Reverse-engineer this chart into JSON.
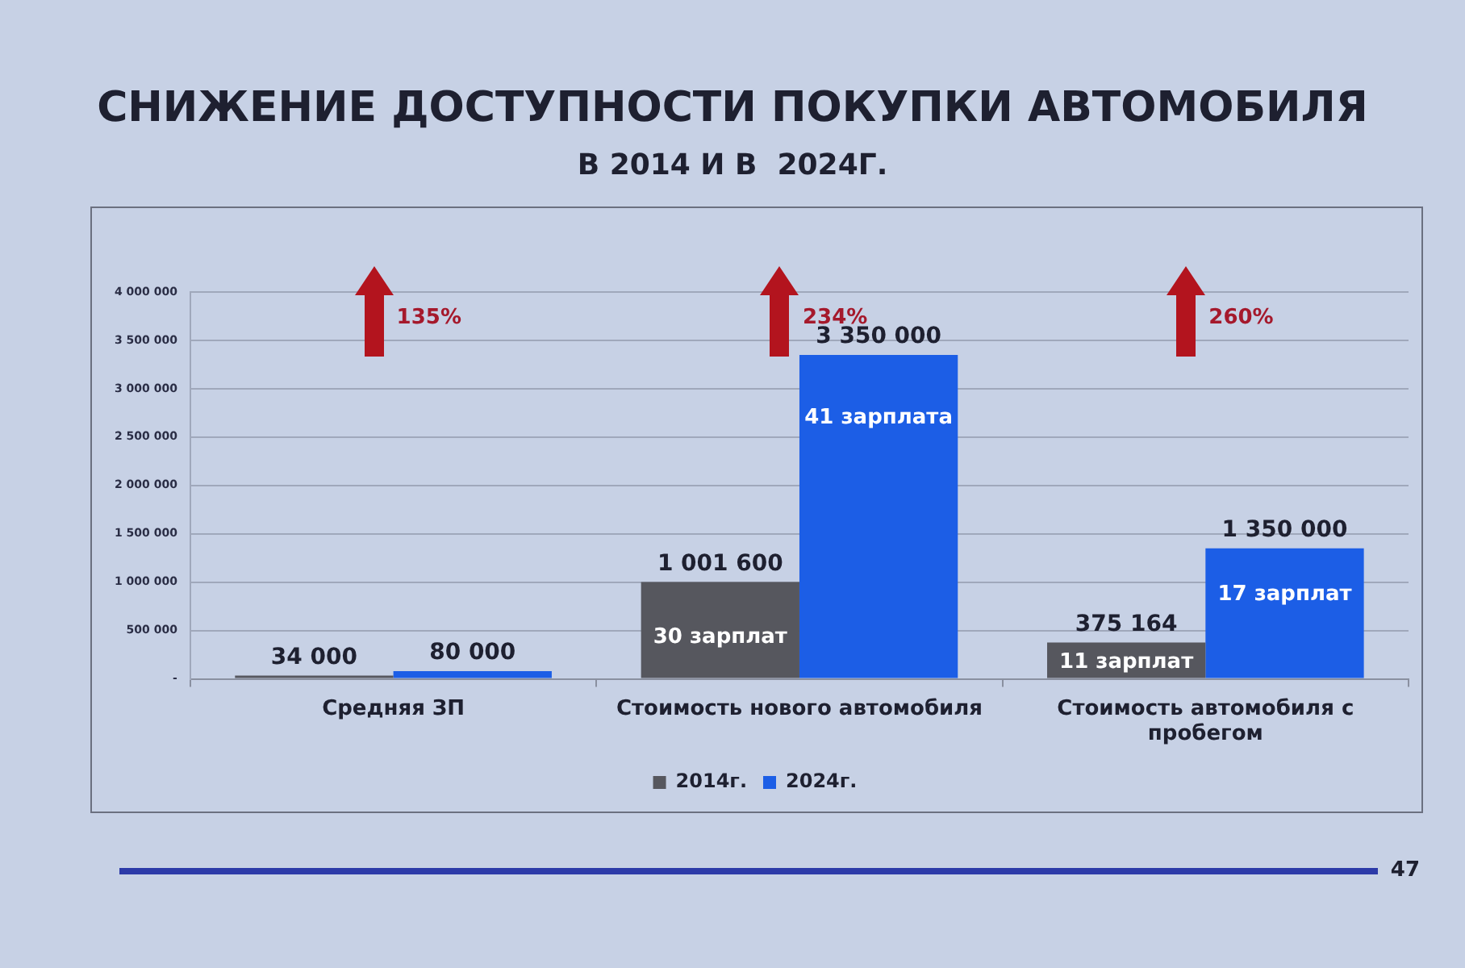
{
  "chart_data": {
    "type": "bar",
    "title": "СНИЖЕНИЕ ДОСТУПНОСТИ ПОКУПКИ АВТОМОБИЛЯ",
    "subtitle": "В 2014 И В  2024Г.",
    "categories": [
      "Средняя ЗП",
      "Стоимость нового автомобиля",
      "Стоимость автомобиля с пробегом"
    ],
    "series": [
      {
        "name": "2014г.",
        "color": "#56575e",
        "values": [
          34000,
          1001600,
          375164
        ],
        "value_labels": [
          "34 000",
          "1 001 600",
          "375 164"
        ]
      },
      {
        "name": "2024г.",
        "color": "#1c5ee6",
        "values": [
          80000,
          3350000,
          1350000
        ],
        "value_labels": [
          "80 000",
          "3 350 000",
          "1 350 000"
        ]
      }
    ],
    "ylim": [
      0,
      4000000
    ],
    "yticks": [
      {
        "value": 0,
        "label": "-"
      },
      {
        "value": 500000,
        "label": "500 000"
      },
      {
        "value": 1000000,
        "label": "1 000 000"
      },
      {
        "value": 1500000,
        "label": "1 500 000"
      },
      {
        "value": 2000000,
        "label": "2 000 000"
      },
      {
        "value": 2500000,
        "label": "2 500 000"
      },
      {
        "value": 3000000,
        "label": "3 000 000"
      },
      {
        "value": 3500000,
        "label": "3 500 000"
      },
      {
        "value": 4000000,
        "label": "4 000 000"
      }
    ],
    "grid": "y",
    "legend": "bottom",
    "annotations": [
      "135%",
      "234%",
      "260%",
      {
        "text": "30 зарплат",
        "x": "Стоимость нового автомобиля",
        "y": 425000
      },
      {
        "text": "41 зарплата",
        "x": "Стоимость нового автомобиля",
        "y": 2700000
      },
      {
        "text": "11 зарплат",
        "x": "Стоимость автомобиля с пробегом",
        "y": 170000
      },
      {
        "text": "17 зарплат",
        "x": "Стоимость автомобиля с пробегом",
        "y": 870000
      },
      "47"
    ]
  }
}
